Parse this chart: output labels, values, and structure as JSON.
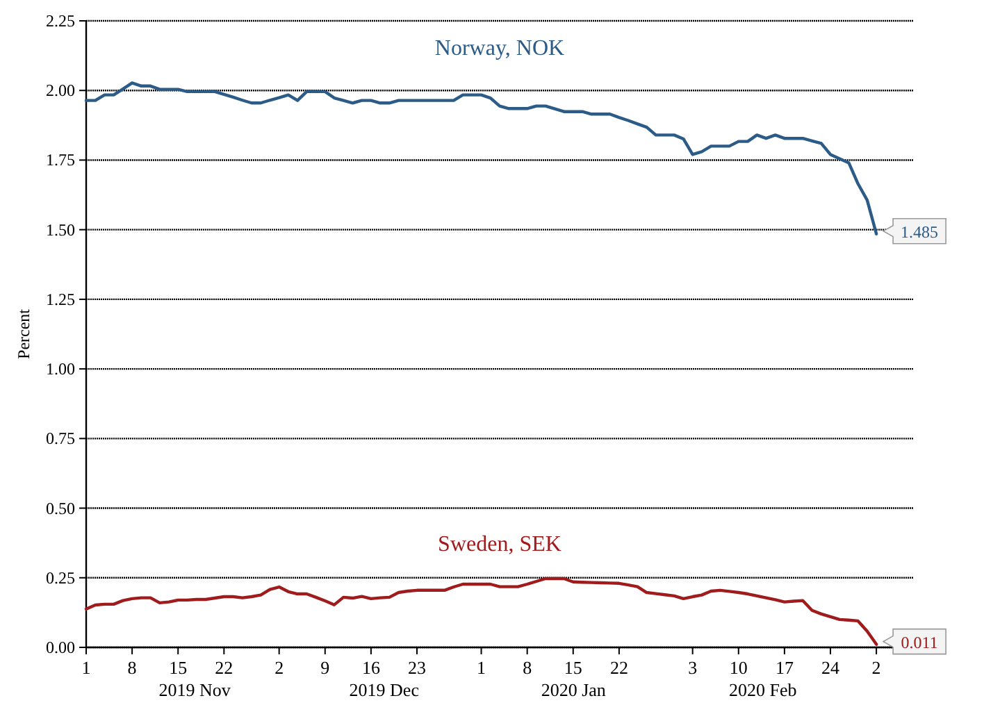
{
  "chart_data": {
    "type": "line",
    "ylabel": "Percent",
    "grid": "y",
    "legend": false,
    "categories": [
      "1",
      null,
      null,
      null,
      null,
      "8",
      null,
      null,
      null,
      null,
      "15",
      null,
      null,
      null,
      null,
      "22",
      null,
      null,
      null,
      null,
      null,
      "2",
      null,
      null,
      null,
      null,
      "9",
      null,
      null,
      null,
      null,
      "16",
      null,
      null,
      null,
      null,
      "23",
      null,
      null,
      null,
      null,
      null,
      null,
      "1",
      null,
      null,
      null,
      null,
      "8",
      null,
      null,
      null,
      null,
      "15",
      null,
      null,
      null,
      null,
      "22",
      null,
      null,
      null,
      null,
      null,
      null,
      null,
      "3",
      null,
      null,
      null,
      null,
      "10",
      null,
      null,
      null,
      null,
      "17",
      null,
      null,
      null,
      null,
      "24",
      null,
      null,
      null,
      null,
      "2",
      null,
      null,
      null,
      null
    ],
    "ylim": [
      0,
      2.25
    ],
    "yticks": [
      {
        "value": 0,
        "label": "0.00"
      },
      {
        "value": 0.25,
        "label": "0.25"
      },
      {
        "value": 0.5,
        "label": "0.50"
      },
      {
        "value": 0.75,
        "label": "0.75"
      },
      {
        "value": 1,
        "label": "1.00"
      },
      {
        "value": 1.25,
        "label": "1.25"
      },
      {
        "value": 1.5,
        "label": "1.50"
      },
      {
        "value": 1.75,
        "label": "1.75"
      },
      {
        "value": 2,
        "label": "2.00"
      },
      {
        "value": 2.25,
        "label": "2.25"
      }
    ],
    "annotations": [
      "2019 Nov",
      "2019 Dec",
      "2020 Jan",
      "2020 Feb"
    ],
    "series": [
      {
        "name": "Norway, NOK",
        "color": "#2b5b86",
        "values": [
          1.964,
          1.964,
          1.984,
          1.984,
          2.005,
          2.027,
          2.016,
          2.016,
          2.004,
          2.004,
          2.004,
          1.996,
          1.996,
          1.996,
          1.996,
          1.986,
          1.976,
          1.965,
          1.955,
          1.955,
          1.965,
          1.974,
          1.984,
          1.964,
          1.996,
          1.996,
          1.996,
          1.973,
          1.964,
          1.955,
          1.964,
          1.964,
          1.955,
          1.955,
          1.964,
          1.964,
          1.964,
          1.964,
          1.964,
          1.964,
          1.964,
          1.984,
          1.984,
          1.984,
          1.973,
          1.944,
          1.935,
          1.935,
          1.935,
          1.944,
          1.944,
          1.934,
          1.924,
          1.924,
          1.924,
          1.915,
          1.915,
          1.915,
          1.903,
          1.892,
          1.88,
          1.868,
          1.84,
          1.84,
          1.84,
          1.826,
          1.77,
          1.78,
          1.8,
          1.8,
          1.8,
          1.817,
          1.817,
          1.84,
          1.828,
          1.84,
          1.828,
          1.828,
          1.828,
          1.819,
          1.81,
          1.77,
          1.755,
          1.74,
          1.665,
          1.606,
          1.485,
          null,
          null,
          null,
          null
        ],
        "value_labels": [
          null,
          null,
          null,
          null,
          null,
          null,
          null,
          null,
          null,
          null,
          null,
          null,
          null,
          null,
          null,
          null,
          null,
          null,
          null,
          null,
          null,
          null,
          null,
          null,
          null,
          null,
          null,
          null,
          null,
          null,
          null,
          null,
          null,
          null,
          null,
          null,
          null,
          null,
          null,
          null,
          null,
          null,
          null,
          null,
          null,
          null,
          null,
          null,
          null,
          null,
          null,
          null,
          null,
          null,
          null,
          null,
          null,
          null,
          null,
          null,
          null,
          null,
          null,
          null,
          null,
          null,
          null,
          null,
          null,
          null,
          null,
          null,
          null,
          null,
          null,
          null,
          null,
          null,
          null,
          null,
          null,
          null,
          null,
          null,
          null,
          null,
          "1.485",
          null,
          null,
          null,
          null
        ]
      },
      {
        "name": "Sweden, SEK",
        "color": "#a01c1c",
        "values": [
          0.138,
          0.152,
          0.155,
          0.155,
          0.168,
          0.175,
          0.178,
          0.178,
          0.16,
          0.163,
          0.17,
          0.17,
          0.172,
          0.172,
          0.177,
          0.182,
          0.182,
          0.178,
          0.182,
          0.188,
          0.208,
          0.217,
          0.2,
          0.192,
          0.192,
          0.18,
          0.167,
          0.153,
          0.18,
          0.177,
          0.183,
          0.175,
          0.178,
          0.18,
          0.197,
          0.202,
          0.205,
          0.205,
          0.205,
          0.205,
          0.217,
          0.227,
          0.227,
          0.227,
          0.227,
          0.218,
          0.218,
          0.218,
          0.227,
          0.237,
          0.247,
          0.247,
          0.247,
          0.235,
          0.234,
          0.233,
          0.232,
          0.231,
          0.23,
          0.224,
          0.218,
          0.197,
          0.193,
          0.189,
          0.185,
          0.175,
          0.182,
          0.188,
          0.202,
          0.205,
          0.201,
          0.197,
          0.192,
          0.185,
          0.178,
          0.171,
          0.163,
          0.166,
          0.168,
          0.133,
          0.12,
          0.11,
          0.1,
          0.098,
          0.095,
          0.058,
          0.011,
          null,
          null,
          null,
          null
        ],
        "value_labels": [
          null,
          null,
          null,
          null,
          null,
          null,
          null,
          null,
          null,
          null,
          null,
          null,
          null,
          null,
          null,
          null,
          null,
          null,
          null,
          null,
          null,
          null,
          null,
          null,
          null,
          null,
          null,
          null,
          null,
          null,
          null,
          null,
          null,
          null,
          null,
          null,
          null,
          null,
          null,
          null,
          null,
          null,
          null,
          null,
          null,
          null,
          null,
          null,
          null,
          null,
          null,
          null,
          null,
          null,
          null,
          null,
          null,
          null,
          null,
          null,
          null,
          null,
          null,
          null,
          null,
          null,
          null,
          null,
          null,
          null,
          null,
          null,
          null,
          null,
          null,
          null,
          null,
          null,
          null,
          null,
          null,
          null,
          null,
          null,
          null,
          null,
          "0.011",
          null,
          null,
          null,
          null
        ]
      }
    ]
  }
}
